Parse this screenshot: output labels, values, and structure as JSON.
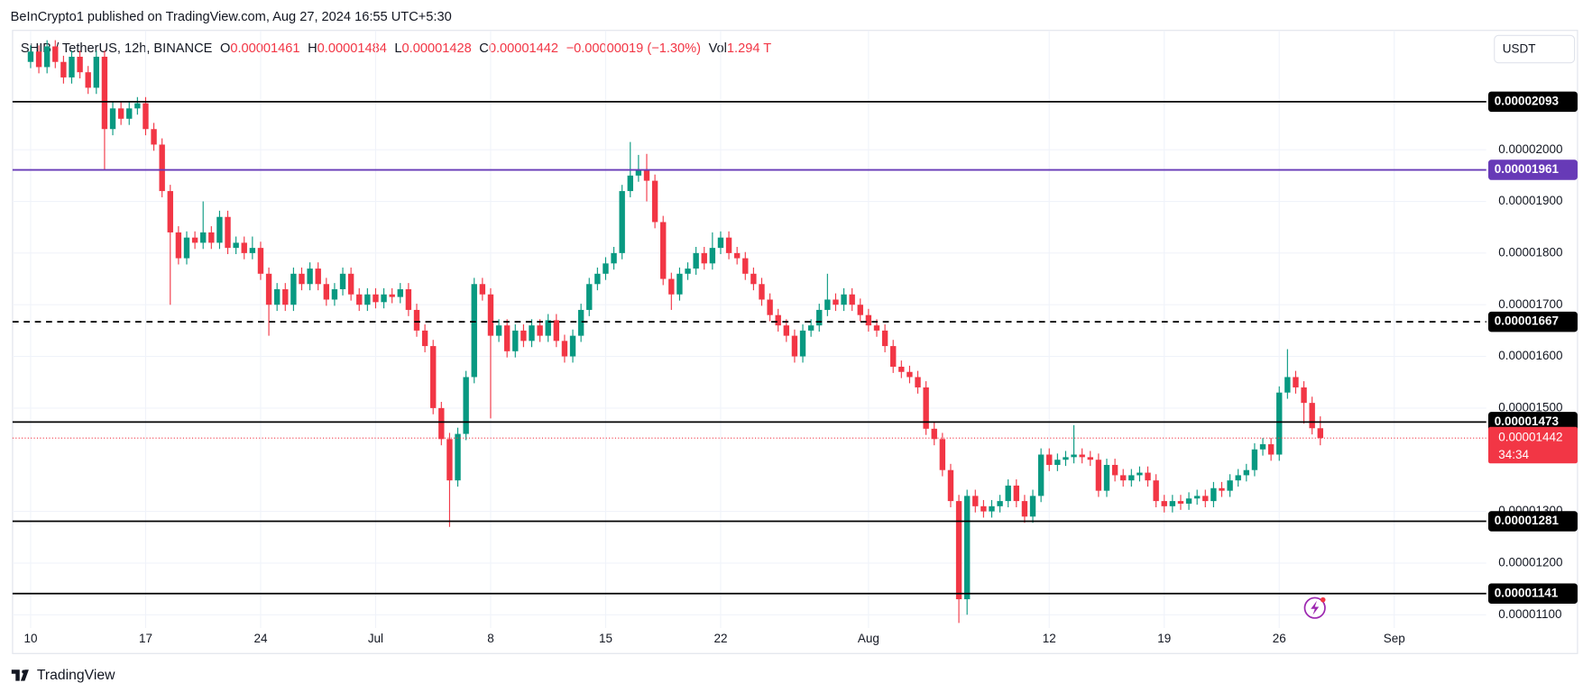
{
  "chart_data": {
    "type": "candlestick",
    "publisher": "BeInCrypto1 published on TradingView.com, Aug 27, 2024 16:55 UTC+5:30",
    "legend": {
      "symbol": "SHIB / TetherUS, 12h, BINANCE",
      "o_label": "O",
      "open": "0.00001461",
      "h_label": "H",
      "high": "0.00001484",
      "l_label": "L",
      "low": "0.00001428",
      "c_label": "C",
      "close": "0.00001442",
      "change": "−0.00000019 (−1.30%)",
      "vol_label": "Vol",
      "volume": "1.294 T"
    },
    "currency": "USDT",
    "footer": "TradingView",
    "up_color": "#089981",
    "down_color": "#f23645",
    "grid": true,
    "xlim": [
      -2.2,
      177.2
    ],
    "xticks": [
      {
        "value": 0,
        "label": "10"
      },
      {
        "value": 14,
        "label": "17"
      },
      {
        "value": 28,
        "label": "24"
      },
      {
        "value": 42,
        "label": "Jul"
      },
      {
        "value": 56,
        "label": "8"
      },
      {
        "value": 70,
        "label": "15"
      },
      {
        "value": 84,
        "label": "22"
      },
      {
        "value": 102,
        "label": "Aug"
      },
      {
        "value": 124,
        "label": "12"
      },
      {
        "value": 138,
        "label": "19"
      },
      {
        "value": 152,
        "label": "26"
      },
      {
        "value": 166,
        "label": "Sep"
      }
    ],
    "ylim": [
      1.074e-05,
      2.231e-05
    ],
    "yticks": [
      {
        "value": 2e-05,
        "label": "0.00002000"
      },
      {
        "value": 1.9e-05,
        "label": "0.00001900"
      },
      {
        "value": 1.8e-05,
        "label": "0.00001800"
      },
      {
        "value": 1.7e-05,
        "label": "0.00001700"
      },
      {
        "value": 1.6e-05,
        "label": "0.00001600"
      },
      {
        "value": 1.5e-05,
        "label": "0.00001500"
      },
      {
        "value": 1.3e-05,
        "label": "0.00001300"
      },
      {
        "value": 1.2e-05,
        "label": "0.00001200"
      },
      {
        "value": 1.1e-05,
        "label": "0.00001100"
      }
    ],
    "levels": [
      {
        "value": 2.093e-05,
        "label": "0.00002093",
        "color": "#000000",
        "style": "solid"
      },
      {
        "value": 1.961e-05,
        "label": "0.00001961",
        "color": "#673ab7",
        "style": "solid"
      },
      {
        "value": 1.667e-05,
        "label": "0.00001667",
        "color": "#000000",
        "style": "dashed"
      },
      {
        "value": 1.473e-05,
        "label": "0.00001473",
        "color": "#000000",
        "style": "solid"
      },
      {
        "value": 1.281e-05,
        "label": "0.00001281",
        "color": "#000000",
        "style": "solid"
      },
      {
        "value": 1.141e-05,
        "label": "0.00001141",
        "color": "#000000",
        "style": "solid"
      }
    ],
    "last_price": {
      "value": 1.442e-05,
      "label": "0.00001442",
      "countdown": "34:34",
      "color": "#f23645"
    },
    "open": [
      2.17e-05,
      2.19e-05,
      2.16e-05,
      2.2e-05,
      2.17e-05,
      2.14e-05,
      2.18e-05,
      2.15e-05,
      2.12e-05,
      2.18e-05,
      2.04e-05,
      2.08e-05,
      2.06e-05,
      2.08e-05,
      2.09e-05,
      2.04e-05,
      2.01e-05,
      1.92e-05,
      1.84e-05,
      1.79e-05,
      1.83e-05,
      1.82e-05,
      1.84e-05,
      1.82e-05,
      1.87e-05,
      1.81e-05,
      1.82e-05,
      1.8e-05,
      1.81e-05,
      1.76e-05,
      1.7e-05,
      1.73e-05,
      1.7e-05,
      1.76e-05,
      1.74e-05,
      1.77e-05,
      1.74e-05,
      1.71e-05,
      1.73e-05,
      1.76e-05,
      1.72e-05,
      1.7e-05,
      1.72e-05,
      1.705e-05,
      1.72e-05,
      1.715e-05,
      1.73e-05,
      1.69e-05,
      1.65e-05,
      1.62e-05,
      1.5e-05,
      1.44e-05,
      1.36e-05,
      1.45e-05,
      1.56e-05,
      1.74e-05,
      1.72e-05,
      1.64e-05,
      1.66e-05,
      1.61e-05,
      1.65e-05,
      1.63e-05,
      1.66e-05,
      1.64e-05,
      1.67e-05,
      1.63e-05,
      1.6e-05,
      1.64e-05,
      1.69e-05,
      1.74e-05,
      1.76e-05,
      1.78e-05,
      1.8e-05,
      1.92e-05,
      1.95e-05,
      1.96e-05,
      1.94e-05,
      1.86e-05,
      1.75e-05,
      1.72e-05,
      1.76e-05,
      1.77e-05,
      1.8e-05,
      1.78e-05,
      1.81e-05,
      1.83e-05,
      1.8e-05,
      1.79e-05,
      1.76e-05,
      1.74e-05,
      1.71e-05,
      1.68e-05,
      1.66e-05,
      1.64e-05,
      1.6e-05,
      1.65e-05,
      1.66e-05,
      1.69e-05,
      1.71e-05,
      1.7e-05,
      1.72e-05,
      1.7e-05,
      1.68e-05,
      1.66e-05,
      1.65e-05,
      1.62e-05,
      1.58e-05,
      1.57e-05,
      1.56e-05,
      1.54e-05,
      1.46e-05,
      1.44e-05,
      1.38e-05,
      1.32e-05,
      1.13e-05,
      1.33e-05,
      1.31e-05,
      1.3e-05,
      1.31e-05,
      1.32e-05,
      1.35e-05,
      1.32e-05,
      1.29e-05,
      1.33e-05,
      1.41e-05,
      1.39e-05,
      1.4e-05,
      1.405e-05,
      1.41e-05,
      1.405e-05,
      1.4e-05,
      1.34e-05,
      1.39e-05,
      1.37e-05,
      1.36e-05,
      1.37e-05,
      1.375e-05,
      1.36e-05,
      1.32e-05,
      1.31e-05,
      1.32e-05,
      1.315e-05,
      1.325e-05,
      1.33e-05,
      1.32e-05,
      1.345e-05,
      1.34e-05,
      1.36e-05,
      1.37e-05,
      1.38e-05,
      1.42e-05,
      1.43e-05,
      1.41e-05,
      1.53e-05,
      1.56e-05,
      1.54e-05,
      1.51e-05,
      1.461e-05
    ],
    "high": [
      2.202e-05,
      2.202e-05,
      2.212e-05,
      2.212e-05,
      2.182e-05,
      2.192e-05,
      2.192e-05,
      2.162e-05,
      2.192e-05,
      2.192e-05,
      2.092e-05,
      2.092e-05,
      2.092e-05,
      2.102e-05,
      2.102e-05,
      2.052e-05,
      2.022e-05,
      1.932e-05,
      1.852e-05,
      1.842e-05,
      1.842e-05,
      1.9e-05,
      1.852e-05,
      1.882e-05,
      1.882e-05,
      1.832e-05,
      1.832e-05,
      1.832e-05,
      1.822e-05,
      1.772e-05,
      1.742e-05,
      1.742e-05,
      1.772e-05,
      1.772e-05,
      1.782e-05,
      1.782e-05,
      1.752e-05,
      1.742e-05,
      1.772e-05,
      1.772e-05,
      1.732e-05,
      1.732e-05,
      1.732e-05,
      1.732e-05,
      1.732e-05,
      1.742e-05,
      1.742e-05,
      1.702e-05,
      1.662e-05,
      1.632e-05,
      1.512e-05,
      1.452e-05,
      1.462e-05,
      1.572e-05,
      1.752e-05,
      1.752e-05,
      1.732e-05,
      1.672e-05,
      1.672e-05,
      1.662e-05,
      1.662e-05,
      1.672e-05,
      1.672e-05,
      1.682e-05,
      1.682e-05,
      1.642e-05,
      1.652e-05,
      1.702e-05,
      1.752e-05,
      1.772e-05,
      1.792e-05,
      1.812e-05,
      1.932e-05,
      2.015e-05,
      1.99e-05,
      1.992e-05,
      1.952e-05,
      1.872e-05,
      1.762e-05,
      1.772e-05,
      1.782e-05,
      1.812e-05,
      1.812e-05,
      1.84e-05,
      1.842e-05,
      1.842e-05,
      1.812e-05,
      1.802e-05,
      1.772e-05,
      1.752e-05,
      1.722e-05,
      1.692e-05,
      1.672e-05,
      1.652e-05,
      1.662e-05,
      1.672e-05,
      1.702e-05,
      1.76e-05,
      1.722e-05,
      1.732e-05,
      1.732e-05,
      1.712e-05,
      1.692e-05,
      1.672e-05,
      1.662e-05,
      1.632e-05,
      1.592e-05,
      1.582e-05,
      1.572e-05,
      1.552e-05,
      1.472e-05,
      1.452e-05,
      1.392e-05,
      1.332e-05,
      1.342e-05,
      1.342e-05,
      1.322e-05,
      1.322e-05,
      1.332e-05,
      1.362e-05,
      1.362e-05,
      1.332e-05,
      1.342e-05,
      1.422e-05,
      1.422e-05,
      1.412e-05,
      1.417e-05,
      1.467e-05,
      1.422e-05,
      1.417e-05,
      1.412e-05,
      1.402e-05,
      1.402e-05,
      1.382e-05,
      1.382e-05,
      1.387e-05,
      1.387e-05,
      1.372e-05,
      1.332e-05,
      1.332e-05,
      1.332e-05,
      1.337e-05,
      1.342e-05,
      1.342e-05,
      1.357e-05,
      1.357e-05,
      1.372e-05,
      1.382e-05,
      1.392e-05,
      1.432e-05,
      1.442e-05,
      1.442e-05,
      1.542e-05,
      1.614e-05,
      1.572e-05,
      1.552e-05,
      1.522e-05,
      1.484e-05
    ],
    "low": [
      2.158e-05,
      2.148e-05,
      2.148e-05,
      2.158e-05,
      2.128e-05,
      2.128e-05,
      2.138e-05,
      2.108e-05,
      2.108e-05,
      1.961e-05,
      2.028e-05,
      2.048e-05,
      2.048e-05,
      2.068e-05,
      2.028e-05,
      1.998e-05,
      1.908e-05,
      1.7e-05,
      1.778e-05,
      1.778e-05,
      1.808e-05,
      1.808e-05,
      1.808e-05,
      1.808e-05,
      1.798e-05,
      1.798e-05,
      1.788e-05,
      1.788e-05,
      1.748e-05,
      1.64e-05,
      1.688e-05,
      1.688e-05,
      1.688e-05,
      1.728e-05,
      1.728e-05,
      1.728e-05,
      1.698e-05,
      1.698e-05,
      1.718e-05,
      1.708e-05,
      1.688e-05,
      1.688e-05,
      1.693e-05,
      1.693e-05,
      1.703e-05,
      1.703e-05,
      1.678e-05,
      1.638e-05,
      1.608e-05,
      1.488e-05,
      1.428e-05,
      1.27e-05,
      1.348e-05,
      1.438e-05,
      1.548e-05,
      1.708e-05,
      1.48e-05,
      1.628e-05,
      1.598e-05,
      1.598e-05,
      1.618e-05,
      1.618e-05,
      1.628e-05,
      1.628e-05,
      1.618e-05,
      1.588e-05,
      1.588e-05,
      1.628e-05,
      1.678e-05,
      1.728e-05,
      1.748e-05,
      1.768e-05,
      1.788e-05,
      1.908e-05,
      1.938e-05,
      1.9e-05,
      1.848e-05,
      1.738e-05,
      1.69e-05,
      1.708e-05,
      1.748e-05,
      1.758e-05,
      1.768e-05,
      1.768e-05,
      1.798e-05,
      1.788e-05,
      1.778e-05,
      1.748e-05,
      1.728e-05,
      1.698e-05,
      1.668e-05,
      1.648e-05,
      1.628e-05,
      1.588e-05,
      1.588e-05,
      1.638e-05,
      1.648e-05,
      1.678e-05,
      1.688e-05,
      1.688e-05,
      1.688e-05,
      1.668e-05,
      1.648e-05,
      1.638e-05,
      1.608e-05,
      1.568e-05,
      1.558e-05,
      1.548e-05,
      1.528e-05,
      1.448e-05,
      1.428e-05,
      1.368e-05,
      1.308e-05,
      1.084e-05,
      1.1e-05,
      1.298e-05,
      1.288e-05,
      1.288e-05,
      1.298e-05,
      1.308e-05,
      1.308e-05,
      1.278e-05,
      1.278e-05,
      1.318e-05,
      1.378e-05,
      1.378e-05,
      1.388e-05,
      1.393e-05,
      1.393e-05,
      1.388e-05,
      1.328e-05,
      1.328e-05,
      1.358e-05,
      1.348e-05,
      1.348e-05,
      1.358e-05,
      1.348e-05,
      1.308e-05,
      1.298e-05,
      1.298e-05,
      1.303e-05,
      1.303e-05,
      1.313e-05,
      1.308e-05,
      1.308e-05,
      1.328e-05,
      1.328e-05,
      1.348e-05,
      1.358e-05,
      1.368e-05,
      1.408e-05,
      1.398e-05,
      1.398e-05,
      1.518e-05,
      1.528e-05,
      1.47e-05,
      1.449e-05,
      1.428e-05
    ],
    "close": [
      2.19e-05,
      2.16e-05,
      2.2e-05,
      2.17e-05,
      2.14e-05,
      2.18e-05,
      2.15e-05,
      2.12e-05,
      2.18e-05,
      2.04e-05,
      2.08e-05,
      2.06e-05,
      2.08e-05,
      2.09e-05,
      2.04e-05,
      2.01e-05,
      1.92e-05,
      1.84e-05,
      1.79e-05,
      1.83e-05,
      1.82e-05,
      1.84e-05,
      1.82e-05,
      1.87e-05,
      1.81e-05,
      1.82e-05,
      1.8e-05,
      1.81e-05,
      1.76e-05,
      1.7e-05,
      1.73e-05,
      1.7e-05,
      1.76e-05,
      1.74e-05,
      1.77e-05,
      1.74e-05,
      1.71e-05,
      1.73e-05,
      1.76e-05,
      1.72e-05,
      1.7e-05,
      1.72e-05,
      1.705e-05,
      1.72e-05,
      1.715e-05,
      1.73e-05,
      1.69e-05,
      1.65e-05,
      1.62e-05,
      1.5e-05,
      1.44e-05,
      1.36e-05,
      1.45e-05,
      1.56e-05,
      1.74e-05,
      1.72e-05,
      1.64e-05,
      1.66e-05,
      1.61e-05,
      1.65e-05,
      1.63e-05,
      1.66e-05,
      1.64e-05,
      1.67e-05,
      1.63e-05,
      1.6e-05,
      1.64e-05,
      1.69e-05,
      1.74e-05,
      1.76e-05,
      1.78e-05,
      1.8e-05,
      1.92e-05,
      1.95e-05,
      1.96e-05,
      1.94e-05,
      1.86e-05,
      1.75e-05,
      1.72e-05,
      1.76e-05,
      1.77e-05,
      1.8e-05,
      1.78e-05,
      1.81e-05,
      1.83e-05,
      1.8e-05,
      1.79e-05,
      1.76e-05,
      1.74e-05,
      1.71e-05,
      1.68e-05,
      1.66e-05,
      1.64e-05,
      1.6e-05,
      1.65e-05,
      1.66e-05,
      1.69e-05,
      1.71e-05,
      1.7e-05,
      1.72e-05,
      1.7e-05,
      1.68e-05,
      1.66e-05,
      1.65e-05,
      1.62e-05,
      1.58e-05,
      1.57e-05,
      1.56e-05,
      1.54e-05,
      1.46e-05,
      1.44e-05,
      1.38e-05,
      1.32e-05,
      1.13e-05,
      1.33e-05,
      1.31e-05,
      1.3e-05,
      1.31e-05,
      1.32e-05,
      1.35e-05,
      1.32e-05,
      1.29e-05,
      1.33e-05,
      1.41e-05,
      1.39e-05,
      1.4e-05,
      1.405e-05,
      1.41e-05,
      1.405e-05,
      1.4e-05,
      1.34e-05,
      1.39e-05,
      1.37e-05,
      1.36e-05,
      1.37e-05,
      1.375e-05,
      1.36e-05,
      1.32e-05,
      1.31e-05,
      1.32e-05,
      1.315e-05,
      1.325e-05,
      1.33e-05,
      1.32e-05,
      1.345e-05,
      1.34e-05,
      1.36e-05,
      1.37e-05,
      1.38e-05,
      1.42e-05,
      1.43e-05,
      1.41e-05,
      1.53e-05,
      1.56e-05,
      1.54e-05,
      1.51e-05,
      1.461e-05,
      1.442e-05
    ]
  }
}
